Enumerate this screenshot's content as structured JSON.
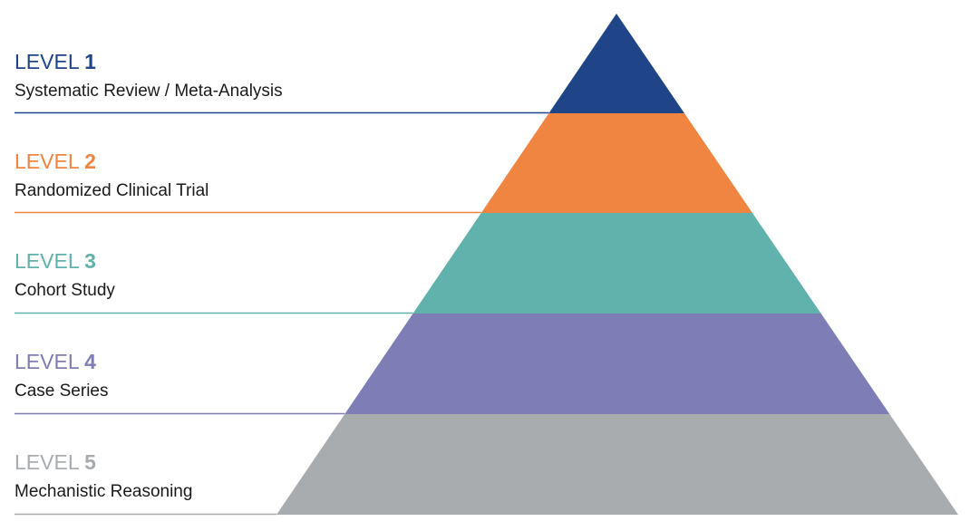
{
  "levels": [
    {
      "word": "LEVEL",
      "number": "1",
      "description": "Systematic Review / Meta-Analysis",
      "color": "#1f4488"
    },
    {
      "word": "LEVEL",
      "number": "2",
      "description": "Randomized Clinical Trial",
      "color": "#f08542"
    },
    {
      "word": "LEVEL",
      "number": "3",
      "description": "Cohort Study",
      "color": "#61b2ad"
    },
    {
      "word": "LEVEL",
      "number": "4",
      "description": "Case Series",
      "color": "#7f7db5"
    },
    {
      "word": "LEVEL",
      "number": "5",
      "description": "Mechanistic Reasoning",
      "color": "#a9acaf"
    }
  ]
}
